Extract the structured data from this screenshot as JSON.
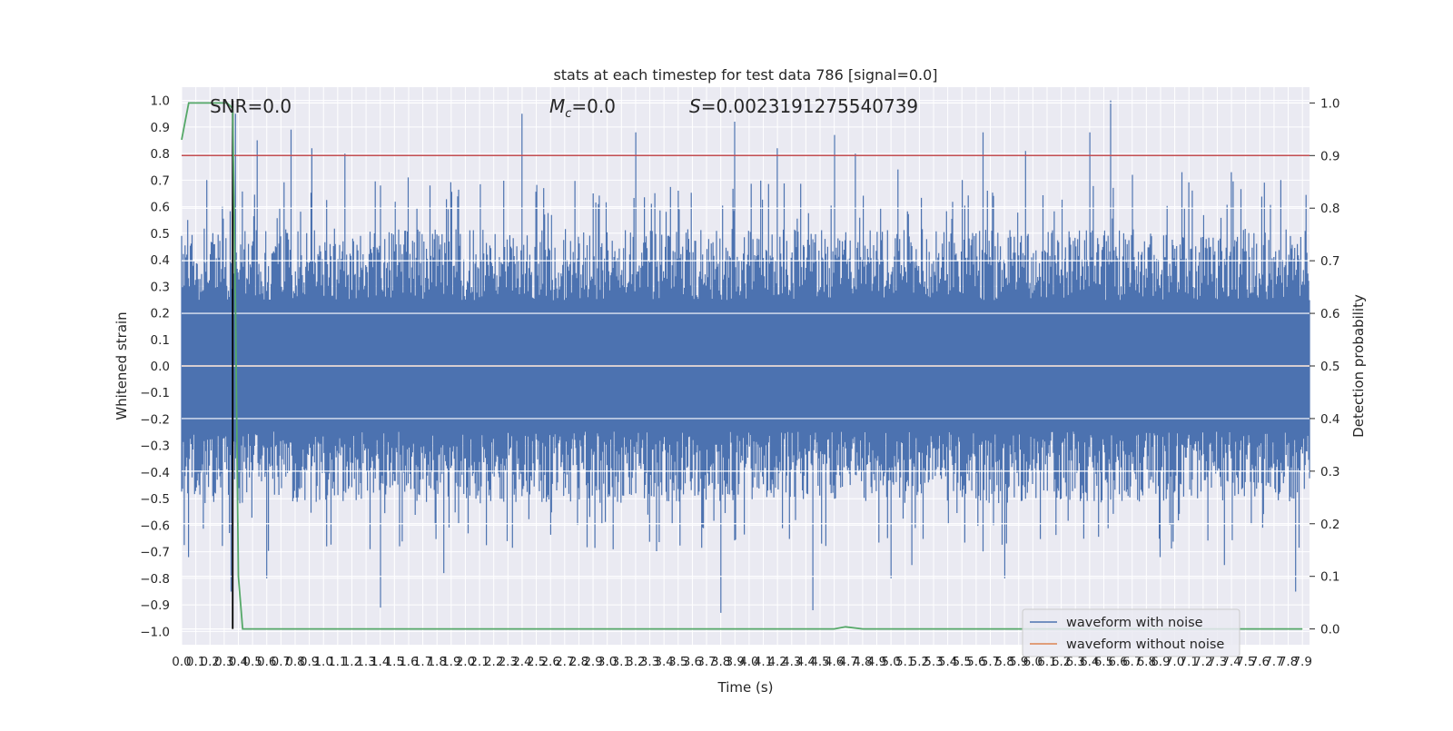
{
  "chart_data": {
    "type": "line",
    "title": "stats at each timestep for test data 786 [signal=0.0]",
    "xlabel": "Time (s)",
    "ylabel": "Whitened strain",
    "y2label": "Detection probability",
    "xlim": [
      0.0,
      7.95
    ],
    "ylim": [
      -1.05,
      1.05
    ],
    "y2lim": [
      -0.03,
      1.03
    ],
    "x_ticks": [
      "0.0",
      "0.1",
      "0.2",
      "0.3",
      "0.4",
      "0.5",
      "0.6",
      "0.7",
      "0.8",
      "0.9",
      "1.0",
      "1.1",
      "1.2",
      "1.3",
      "1.4",
      "1.5",
      "1.6",
      "1.7",
      "1.8",
      "1.9",
      "2.0",
      "2.1",
      "2.2",
      "2.3",
      "2.4",
      "2.5",
      "2.6",
      "2.7",
      "2.8",
      "2.9",
      "3.0",
      "3.1",
      "3.2",
      "3.3",
      "3.4",
      "3.5",
      "3.6",
      "3.7",
      "3.8",
      "3.9",
      "4.0",
      "4.1",
      "4.2",
      "4.3",
      "4.4",
      "4.5",
      "4.6",
      "4.7",
      "4.8",
      "4.9",
      "5.0",
      "5.1",
      "5.2",
      "5.3",
      "5.4",
      "5.5",
      "5.6",
      "5.7",
      "5.8",
      "5.9",
      "6.0",
      "6.1",
      "6.2",
      "6.3",
      "6.4",
      "6.5",
      "6.6",
      "6.7",
      "6.8",
      "6.9",
      "7.0",
      "7.1",
      "7.2",
      "7.3",
      "7.4",
      "7.5",
      "7.6",
      "7.7",
      "7.8",
      "7.9"
    ],
    "y_ticks": [
      "−1.0",
      "−0.9",
      "−0.8",
      "−0.7",
      "−0.6",
      "−0.5",
      "−0.4",
      "−0.3",
      "−0.2",
      "−0.1",
      "0.0",
      "0.1",
      "0.2",
      "0.3",
      "0.4",
      "0.5",
      "0.6",
      "0.7",
      "0.8",
      "0.9",
      "1.0"
    ],
    "y2_ticks": [
      "0.0",
      "0.1",
      "0.2",
      "0.3",
      "0.4",
      "0.5",
      "0.6",
      "0.7",
      "0.8",
      "0.9",
      "1.0"
    ],
    "annotations": {
      "snr": "SNR=0.0",
      "mc": "=0.0",
      "mc_symbol": "M",
      "mc_sub": "c",
      "s": "=0.0023191275540739",
      "s_symbol": "S"
    },
    "grid": true,
    "legend_position": "lower-right",
    "series": [
      {
        "name": "waveform with noise",
        "color": "#4c72b0",
        "kind": "noise",
        "envelope_upper": 0.45,
        "envelope_lower": -0.45,
        "peaks_upper": [
          [
            0.04,
            0.55
          ],
          [
            0.18,
            0.7
          ],
          [
            0.29,
            0.6
          ],
          [
            0.38,
            0.95
          ],
          [
            0.53,
            0.85
          ],
          [
            0.77,
            0.89
          ],
          [
            0.92,
            0.82
          ],
          [
            1.15,
            0.8
          ],
          [
            1.4,
            0.68
          ],
          [
            1.6,
            0.71
          ],
          [
            2.4,
            0.95
          ],
          [
            2.55,
            0.67
          ],
          [
            2.9,
            0.65
          ],
          [
            3.2,
            0.88
          ],
          [
            3.5,
            0.66
          ],
          [
            3.9,
            0.92
          ],
          [
            4.2,
            0.82
          ],
          [
            4.6,
            0.87
          ],
          [
            4.75,
            0.8
          ],
          [
            5.05,
            0.74
          ],
          [
            5.5,
            0.7
          ],
          [
            5.65,
            0.88
          ],
          [
            5.95,
            0.81
          ],
          [
            6.4,
            0.88
          ],
          [
            6.55,
            1.0
          ],
          [
            6.7,
            0.72
          ],
          [
            7.05,
            0.73
          ],
          [
            7.4,
            0.73
          ],
          [
            7.75,
            0.7
          ]
        ],
        "peaks_lower": [
          [
            0.05,
            -0.72
          ],
          [
            0.35,
            -0.85
          ],
          [
            0.6,
            -0.8
          ],
          [
            1.4,
            -0.91
          ],
          [
            1.85,
            -0.78
          ],
          [
            3.8,
            -0.93
          ],
          [
            4.45,
            -0.92
          ],
          [
            5.0,
            -0.8
          ],
          [
            5.15,
            -0.75
          ],
          [
            5.8,
            -0.8
          ],
          [
            6.9,
            -0.72
          ],
          [
            7.35,
            -0.75
          ],
          [
            7.85,
            -0.85
          ]
        ]
      },
      {
        "name": "waveform without noise",
        "color": "#dd8452",
        "x": [
          0.0,
          7.95
        ],
        "values": [
          0.0,
          0.0
        ]
      },
      {
        "name": "",
        "color": "#55a868",
        "axis": "secondary",
        "x": [
          0.0,
          0.05,
          0.12,
          0.25,
          0.32,
          0.36,
          0.38,
          0.4,
          0.43,
          0.6,
          0.8,
          1.0,
          4.5,
          4.6,
          4.68,
          4.8,
          7.9
        ],
        "values": [
          0.93,
          1.0,
          1.0,
          1.0,
          1.0,
          0.99,
          0.6,
          0.1,
          0.0,
          0.0,
          0.0,
          0.0,
          0.0,
          0.0,
          0.004,
          0.0,
          0.0
        ]
      }
    ],
    "threshold": {
      "axis": "secondary",
      "value": 0.9,
      "color": "#c44e52"
    },
    "marker_line": {
      "x": 0.36,
      "color": "#000000"
    }
  },
  "legend": {
    "entries": [
      {
        "label": "waveform with noise",
        "color": "#4c72b0"
      },
      {
        "label": "waveform without noise",
        "color": "#dd8452"
      }
    ]
  }
}
